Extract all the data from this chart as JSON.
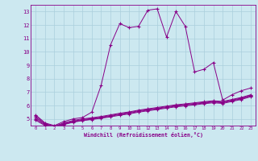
{
  "xlabel": "Windchill (Refroidissement éolien,°C)",
  "xlim": [
    -0.5,
    23.5
  ],
  "ylim": [
    4.5,
    13.5
  ],
  "yticks": [
    5,
    6,
    7,
    8,
    9,
    10,
    11,
    12,
    13
  ],
  "xticks": [
    0,
    1,
    2,
    3,
    4,
    5,
    6,
    7,
    8,
    9,
    10,
    11,
    12,
    13,
    14,
    15,
    16,
    17,
    18,
    19,
    20,
    21,
    22,
    23
  ],
  "background_color": "#cce8f0",
  "line_color": "#880088",
  "grid_color": "#aacfdc",
  "line1": [
    5.3,
    4.7,
    4.5,
    4.8,
    5.0,
    5.1,
    5.5,
    7.5,
    10.5,
    12.1,
    11.8,
    11.9,
    13.1,
    13.2,
    11.1,
    13.0,
    11.9,
    8.5,
    8.7,
    9.2,
    6.4,
    6.8,
    7.1,
    7.3
  ],
  "line2": [
    5.2,
    4.65,
    4.45,
    4.7,
    4.88,
    5.0,
    5.08,
    5.18,
    5.3,
    5.42,
    5.52,
    5.65,
    5.75,
    5.85,
    5.95,
    6.05,
    6.12,
    6.2,
    6.28,
    6.35,
    6.3,
    6.45,
    6.6,
    6.8
  ],
  "line3": [
    5.1,
    4.6,
    4.42,
    4.65,
    4.83,
    4.95,
    5.03,
    5.13,
    5.25,
    5.37,
    5.47,
    5.6,
    5.7,
    5.8,
    5.9,
    6.0,
    6.07,
    6.15,
    6.23,
    6.3,
    6.25,
    6.4,
    6.55,
    6.75
  ],
  "line4": [
    5.0,
    4.55,
    4.38,
    4.6,
    4.78,
    4.9,
    4.98,
    5.08,
    5.2,
    5.32,
    5.42,
    5.55,
    5.65,
    5.75,
    5.85,
    5.95,
    6.02,
    6.1,
    6.18,
    6.25,
    6.2,
    6.35,
    6.5,
    6.7
  ],
  "line5": [
    4.9,
    4.5,
    4.35,
    4.57,
    4.75,
    4.87,
    4.95,
    5.05,
    5.15,
    5.27,
    5.37,
    5.5,
    5.6,
    5.7,
    5.8,
    5.9,
    5.97,
    6.05,
    6.13,
    6.2,
    6.15,
    6.3,
    6.45,
    6.65
  ]
}
